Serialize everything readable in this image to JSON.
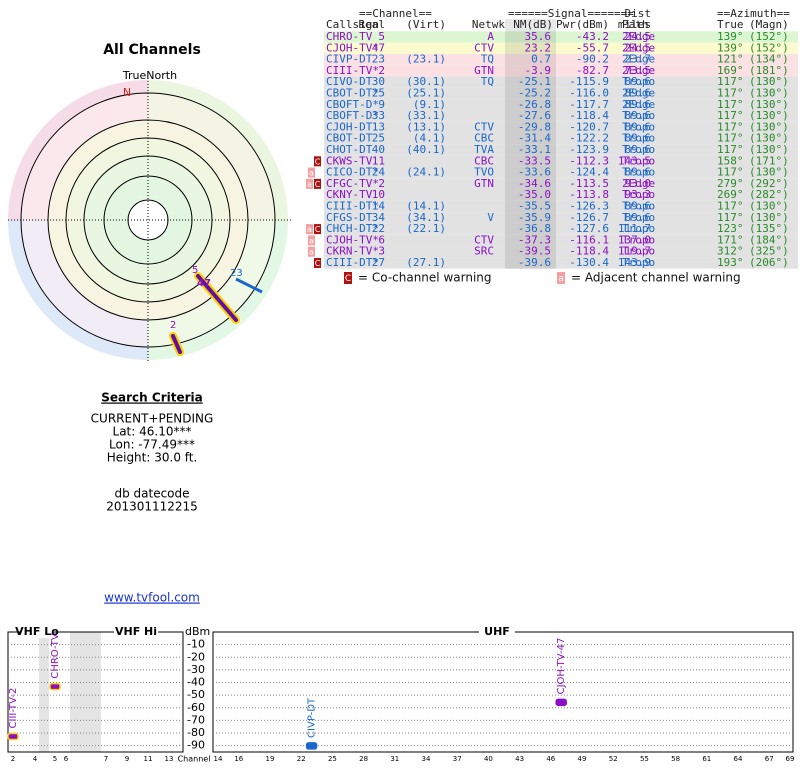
{
  "polar": {
    "title": "All Channels",
    "north_label": "TrueNorth",
    "n_marker": "N"
  },
  "search": {
    "title": "Search Criteria",
    "lines": [
      "CURRENT+PENDING",
      "Lat: 46.10***",
      "Lon: -77.49***",
      "Height: 30.0 ft."
    ],
    "datecode_label": "db datecode",
    "datecode": "201301112215"
  },
  "link": "www.tvfool.com",
  "table": {
    "group_headers": [
      "==Channel==",
      "======Signal=======",
      "Dist",
      "==Azimuth=="
    ],
    "headers": [
      "Callsign",
      "Real",
      "(Virt)",
      "Netwk",
      "NM(dB)",
      "Pwr(dBm)",
      "Path",
      "miles",
      "True",
      "(Magn)"
    ],
    "azimuth_color": "#2a8a2a",
    "rows": [
      {
        "callsign": "CHRO-TV",
        "real": "5",
        "netwk": "A",
        "nm": "35.6",
        "pwr": "-43.2",
        "path": "2Edge",
        "dist": "24.5",
        "true": "139°",
        "magn": "(152°)",
        "color": "#8a10c8",
        "bg": "#dcf6d2"
      },
      {
        "callsign": "CJOH-TV*",
        "real": "47",
        "netwk": "CTV",
        "nm": "23.2",
        "pwr": "-55.7",
        "path": "2Edge",
        "dist": "24.5",
        "true": "139°",
        "magn": "(152°)",
        "color": "#8a10c8",
        "bg": "#fbfbcf"
      },
      {
        "callsign": "CIVP-DT",
        "real": "23",
        "virt": "(23.1)",
        "netwk": "TQ",
        "nm": "0.7",
        "pwr": "-90.2",
        "path": "2Edge",
        "dist": "23.7",
        "true": "121°",
        "magn": "(134°)",
        "color": "#1a66cc",
        "bg": "#fbe1e4"
      },
      {
        "callsign": "CIII-TV*",
        "real": "2",
        "netwk": "GTN",
        "nm": "-3.9",
        "pwr": "-82.7",
        "path": "2Edge",
        "dist": "73.5",
        "true": "169°",
        "magn": "(181°)",
        "color": "#8a10c8",
        "bg": "#fbe1e4"
      },
      {
        "callsign": "CIVO-DT",
        "real": "30",
        "virt": "(30.1)",
        "netwk": "TQ",
        "nm": "-25.1",
        "pwr": "-115.9",
        "path": "Tropo",
        "dist": "89.6",
        "true": "117°",
        "magn": "(130°)",
        "color": "#1a66cc",
        "bg": "#e2e2e2"
      },
      {
        "callsign": "CBOT-DT*",
        "real": "25",
        "virt": "(25.1)",
        "nm": "-25.2",
        "pwr": "-116.0",
        "path": "2Edge",
        "dist": "89.6",
        "true": "117°",
        "magn": "(130°)",
        "color": "#1a66cc",
        "bg": "#e2e2e2"
      },
      {
        "callsign": "CBOFT-D*",
        "real": "9",
        "virt": "(9.1)",
        "nm": "-26.8",
        "pwr": "-117.7",
        "path": "2Edge",
        "dist": "89.6",
        "true": "117°",
        "magn": "(130°)",
        "color": "#1a66cc",
        "bg": "#e2e2e2"
      },
      {
        "callsign": "CBOFT-D*",
        "real": "33",
        "virt": "(33.1)",
        "nm": "-27.6",
        "pwr": "-118.4",
        "path": "Tropo",
        "dist": "89.6",
        "true": "117°",
        "magn": "(130°)",
        "color": "#1a66cc",
        "bg": "#e2e2e2"
      },
      {
        "callsign": "CJOH-DT",
        "real": "13",
        "virt": "(13.1)",
        "netwk": "CTV",
        "nm": "-29.8",
        "pwr": "-120.7",
        "path": "Tropo",
        "dist": "89.6",
        "true": "117°",
        "magn": "(130°)",
        "color": "#1a66cc",
        "bg": "#e2e2e2"
      },
      {
        "callsign": "CBOT-DT",
        "real": "25",
        "virt": "(4.1)",
        "netwk": "CBC",
        "nm": "-31.4",
        "pwr": "-122.2",
        "path": "Tropo",
        "dist": "89.6",
        "true": "117°",
        "magn": "(130°)",
        "color": "#1a66cc",
        "bg": "#e2e2e2"
      },
      {
        "callsign": "CHOT-DT",
        "real": "40",
        "virt": "(40.1)",
        "netwk": "TVA",
        "nm": "-33.1",
        "pwr": "-123.9",
        "path": "Tropo",
        "dist": "89.6",
        "true": "117°",
        "magn": "(130°)",
        "color": "#1a66cc",
        "bg": "#e2e2e2"
      },
      {
        "callsign": "CKWS-TV",
        "real": "11",
        "netwk": "CBC",
        "nm": "-33.5",
        "pwr": "-112.3",
        "path": "Tropo",
        "dist": "143.5",
        "true": "158°",
        "magn": "(171°)",
        "color": "#8a10c8",
        "bg": "#e2e2e2",
        "warnings": [
          "C"
        ]
      },
      {
        "callsign": "CICO-DT*",
        "real": "24",
        "virt": "(24.1)",
        "netwk": "TVO",
        "nm": "-33.6",
        "pwr": "-124.4",
        "path": "Tropo",
        "dist": "89.6",
        "true": "117°",
        "magn": "(130°)",
        "color": "#1a66cc",
        "bg": "#e2e2e2",
        "warnings": [
          "a"
        ]
      },
      {
        "callsign": "CFGC-TV*",
        "real": "2",
        "netwk": "GTN",
        "nm": "-34.6",
        "pwr": "-113.5",
        "path": "2Edge",
        "dist": "93.0",
        "true": "279°",
        "magn": "(292°)",
        "color": "#8a10c8",
        "bg": "#e2e2e2",
        "warnings": [
          "a",
          "C"
        ]
      },
      {
        "callsign": "CKNY-TV",
        "real": "10",
        "nm": "-35.0",
        "pwr": "-113.8",
        "path": "Tropo",
        "dist": "93.3",
        "true": "269°",
        "magn": "(282°)",
        "color": "#8a10c8",
        "bg": "#e2e2e2"
      },
      {
        "callsign": "CIII-DT*",
        "real": "14",
        "virt": "(14.1)",
        "nm": "-35.5",
        "pwr": "-126.3",
        "path": "Tropo",
        "dist": "89.6",
        "true": "117°",
        "magn": "(130°)",
        "color": "#1a66cc",
        "bg": "#e2e2e2"
      },
      {
        "callsign": "CFGS-DT",
        "real": "34",
        "virt": "(34.1)",
        "netwk": "V",
        "nm": "-35.9",
        "pwr": "-126.7",
        "path": "Tropo",
        "dist": "89.6",
        "true": "117°",
        "magn": "(130°)",
        "color": "#1a66cc",
        "bg": "#e2e2e2"
      },
      {
        "callsign": "CHCH-DT*",
        "real": "22",
        "virt": "(22.1)",
        "nm": "-36.8",
        "pwr": "-127.6",
        "path": "Tropo",
        "dist": "111.7",
        "true": "123°",
        "magn": "(135°)",
        "color": "#1a66cc",
        "bg": "#e2e2e2",
        "warnings": [
          "a",
          "C"
        ]
      },
      {
        "callsign": "CJOH-TV*",
        "real": "6",
        "netwk": "CTV",
        "nm": "-37.3",
        "pwr": "-116.1",
        "path": "Tropo",
        "dist": "137.0",
        "true": "171°",
        "magn": "(184°)",
        "color": "#8a10c8",
        "bg": "#e2e2e2",
        "warnings": [
          "a"
        ]
      },
      {
        "callsign": "CKRN-TV*",
        "real": "3",
        "netwk": "SRC",
        "nm": "-39.5",
        "pwr": "-118.4",
        "path": "Tropo",
        "dist": "119.7",
        "true": "312°",
        "magn": "(325°)",
        "color": "#8a10c8",
        "bg": "#e2e2e2",
        "warnings": [
          "a"
        ]
      },
      {
        "callsign": "CIII-DT*",
        "real": "27",
        "virt": "(27.1)",
        "nm": "-39.6",
        "pwr": "-130.4",
        "path": "Tropo",
        "dist": "143.9",
        "true": "193°",
        "magn": "(206°)",
        "color": "#1a66cc",
        "bg": "#e2e2e2",
        "warnings": [
          "C"
        ]
      }
    ]
  },
  "legend": [
    {
      "icon": "C",
      "text": "= Co-channel warning"
    },
    {
      "icon": "a",
      "text": "= Adjacent channel warning"
    }
  ],
  "chart_data": {
    "type": "scatter",
    "bands": [
      "VHF Lo",
      "VHF Hi",
      "UHF"
    ],
    "y_label": "dBm",
    "x_label": "Channel",
    "ylim": [
      -95,
      0
    ],
    "yticks": [
      -10,
      -20,
      -30,
      -40,
      -50,
      -60,
      -70,
      -80,
      -90
    ],
    "xticks": [
      2,
      4,
      5,
      6,
      7,
      9,
      11,
      13,
      14,
      16,
      19,
      22,
      25,
      28,
      31,
      34,
      37,
      40,
      43,
      46,
      49,
      52,
      55,
      58,
      61,
      64,
      67,
      69
    ],
    "x": [
      2,
      5,
      23,
      47
    ],
    "values": [
      -82.7,
      -43.2,
      -90.2,
      -55.7
    ],
    "point_labels": [
      "CIII-TV-2",
      "CHRO-TV",
      "CIVP-DT",
      "CJOH-TV-47"
    ],
    "colors": [
      "#8a10c8",
      "#8a10c8",
      "#1a66cc",
      "#8a10c8"
    ],
    "edge_colors": [
      "#ffd000",
      "#ffd000",
      "#1a66cc",
      "#8a10c8"
    ],
    "grid": true
  }
}
